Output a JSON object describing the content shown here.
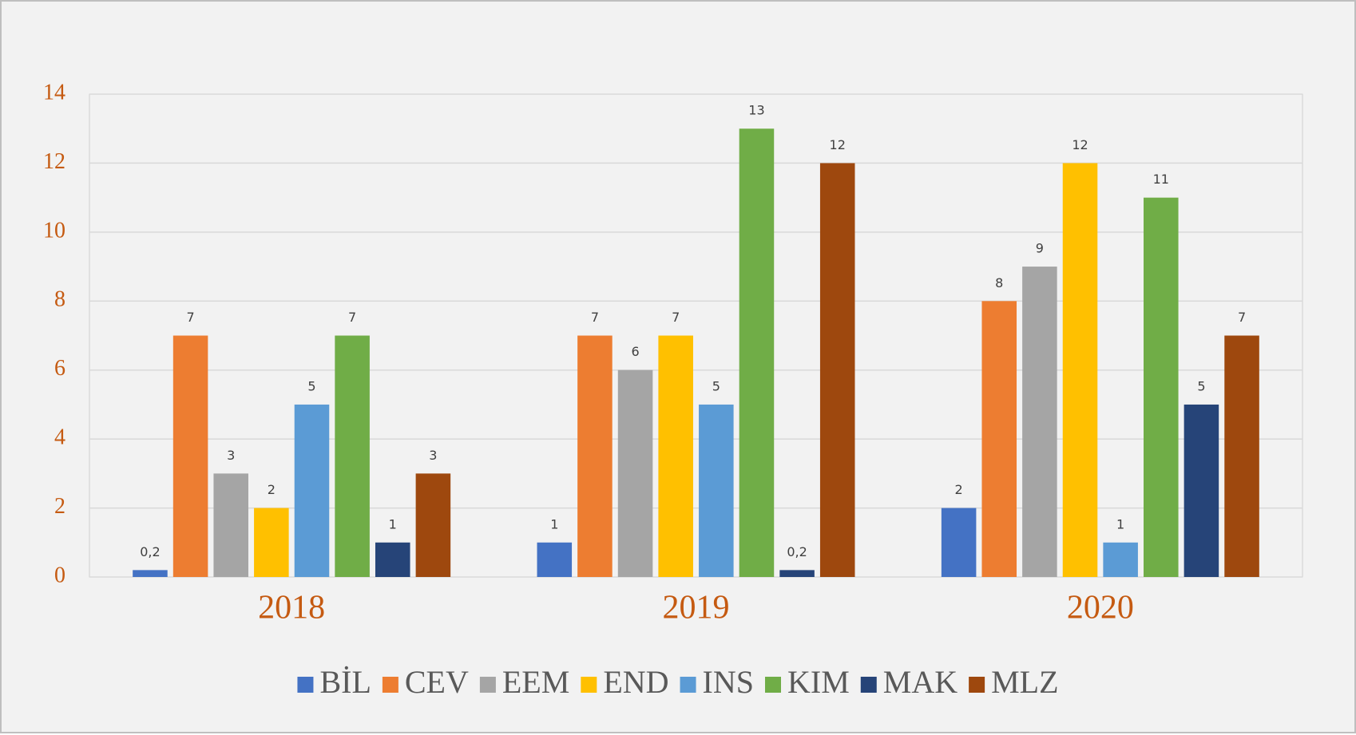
{
  "chart_data": {
    "type": "bar",
    "categories": [
      "2018",
      "2019",
      "2020"
    ],
    "series": [
      {
        "name": "BİL",
        "color": "#4472c4",
        "values": [
          0.2,
          1,
          2
        ],
        "value_labels": [
          "0,2",
          "1",
          "2"
        ]
      },
      {
        "name": "CEV",
        "color": "#ed7d31",
        "values": [
          7,
          7,
          8
        ]
      },
      {
        "name": "EEM",
        "color": "#a5a5a5",
        "values": [
          3,
          6,
          9
        ]
      },
      {
        "name": "END",
        "color": "#ffc000",
        "values": [
          2,
          7,
          12
        ]
      },
      {
        "name": "INS",
        "color": "#5b9bd5",
        "values": [
          5,
          5,
          1
        ]
      },
      {
        "name": "KIM",
        "color": "#70ad47",
        "values": [
          7,
          13,
          11
        ]
      },
      {
        "name": "MAK",
        "color": "#264478",
        "values": [
          1,
          0.2,
          5
        ],
        "value_labels": [
          "1",
          "0,2",
          "5"
        ]
      },
      {
        "name": "MLZ",
        "color": "#9e480e",
        "values": [
          3,
          12,
          7
        ]
      }
    ],
    "ylim": [
      0,
      14
    ],
    "yticks": [
      0,
      2,
      4,
      6,
      8,
      10,
      12,
      14
    ],
    "grid": true,
    "legend": "bottom"
  }
}
